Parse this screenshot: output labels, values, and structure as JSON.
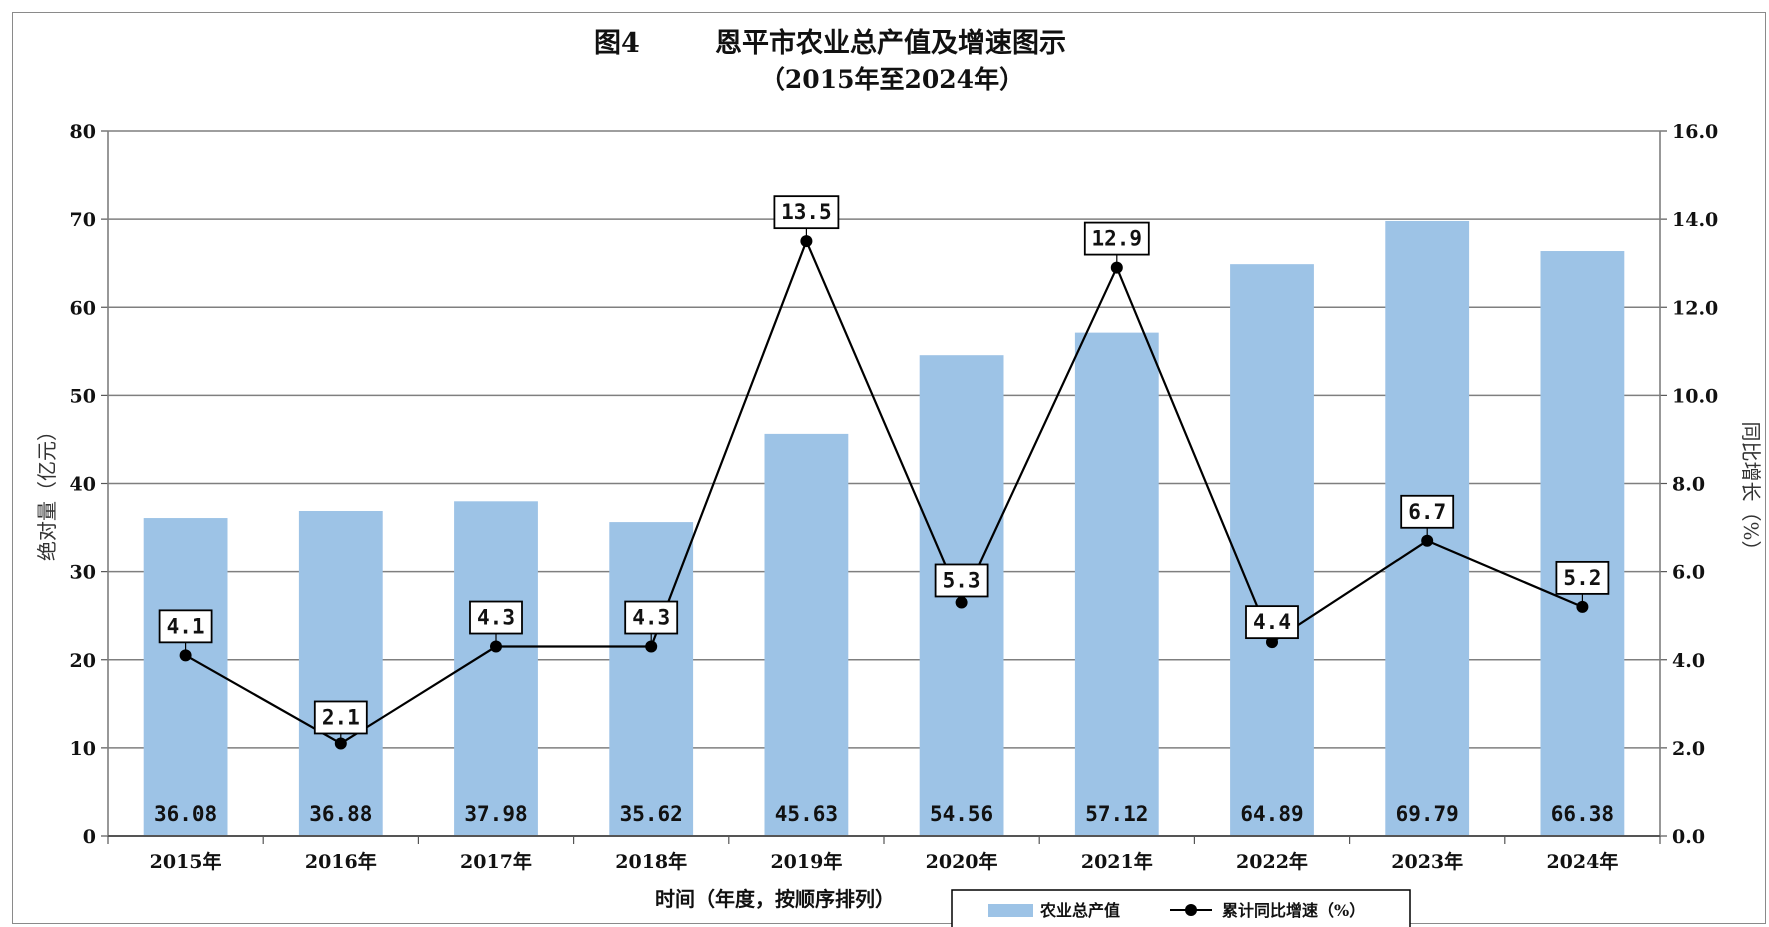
{
  "chart_data": {
    "type": "bar",
    "title": "图4        恩平市农业总产值及增速图示",
    "subtitle": "（2015年至2024年）",
    "xlabel": "时间（年度，按顺序排列）",
    "ylabel": "绝对量（亿元）",
    "y2label": "同比增长（%）",
    "categories": [
      "2015年",
      "2016年",
      "2017年",
      "2018年",
      "2019年",
      "2020年",
      "2021年",
      "2022年",
      "2023年",
      "2024年"
    ],
    "ylim": [
      0,
      80
    ],
    "y2lim": [
      0,
      16
    ],
    "yticks": [
      "0",
      "10",
      "20",
      "30",
      "40",
      "50",
      "60",
      "70",
      "80"
    ],
    "y2ticks": [
      "0.0",
      "2.0",
      "4.0",
      "6.0",
      "8.0",
      "10.0",
      "12.0",
      "14.0",
      "16.0"
    ],
    "grid": true,
    "legend_position": "bottom",
    "series": [
      {
        "name": "农业总产值",
        "type": "bar",
        "axis": "left",
        "color": "#9dc3e6",
        "values": [
          36.08,
          36.88,
          37.98,
          35.62,
          45.63,
          54.56,
          57.12,
          64.89,
          69.79,
          66.38
        ],
        "labels": [
          "36.08",
          "36.88",
          "37.98",
          "35.62",
          "45.63",
          "54.56",
          "57.12",
          "64.89",
          "69.79",
          "66.38"
        ]
      },
      {
        "name": "累计同比增速（%）",
        "type": "line",
        "axis": "right",
        "color": "#000000",
        "values": [
          4.1,
          2.1,
          4.3,
          4.3,
          13.5,
          5.3,
          12.9,
          4.4,
          6.7,
          5.2
        ],
        "labels": [
          "4.1",
          "2.1",
          "4.3",
          "4.3",
          "13.5",
          "5.3",
          "12.9",
          "4.4",
          "6.7",
          "5.2"
        ]
      }
    ]
  }
}
